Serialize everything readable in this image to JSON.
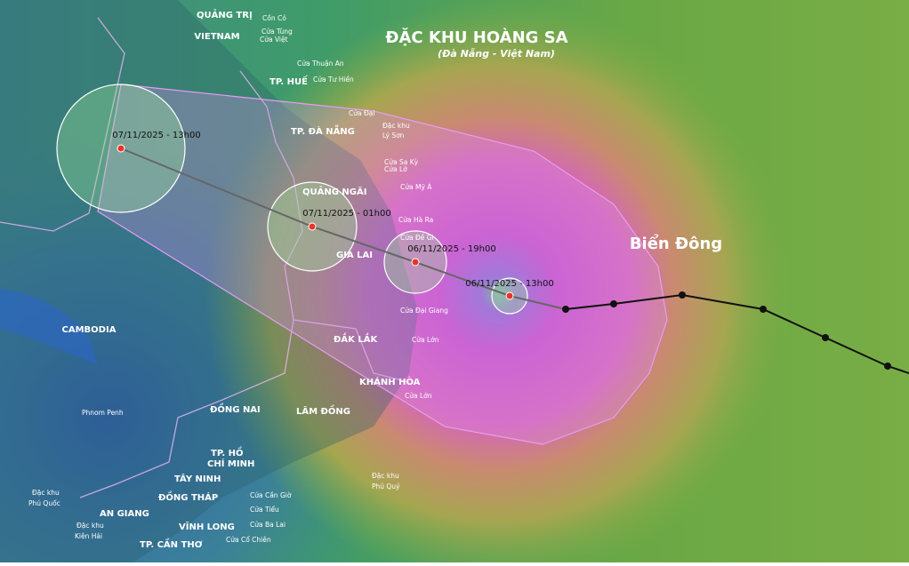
{
  "header": {
    "title": "ĐẶC KHU HOÀNG SA",
    "subtitle": "(Đà Nẵng - Việt Nam)"
  },
  "sea_label": "Biển Đông",
  "countries": [
    "VIETNAM",
    "CAMBODIA"
  ],
  "regions": [
    "QUẢNG TRỊ",
    "TP. HUẾ",
    "TP. ĐÀ NẴNG",
    "QUẢNG NGÃI",
    "GIA LAI",
    "ĐẮK LẮK",
    "KHÁNH HÒA",
    "LÂM ĐỒNG",
    "ĐỒNG NAI",
    "TP. HỒ",
    "CHÍ MINH",
    "TÂY NINH",
    "ĐỒNG THÁP",
    "AN GIANG",
    "VĨNH LONG",
    "TP. CẦN THƠ"
  ],
  "places": [
    "Cồn Cỏ",
    "Cửa Tùng",
    "Cửa Việt",
    "Cửa Thuận An",
    "Cửa Tư Hiền",
    "Cửa Đại",
    "Đặc khu",
    "Lý Sơn",
    "Cửa Sa Kỳ",
    "Cửa Lở",
    "Cửa Mỹ Á",
    "Cửa Hà Ra",
    "Cửa Đề Gi",
    "Cửa Đại Giang",
    "Cửa Lớn",
    "Cửa Lớn",
    "Phnom Penh",
    "Cửa Cần Giờ",
    "Cửa Tiểu",
    "Cửa Ba Lai",
    "Cửa Cổ Chiên",
    "Đặc khu",
    "Phú Quý",
    "Đặc khu",
    "Phú Quốc",
    "Đặc khu",
    "Kiên Hải"
  ],
  "forecast": [
    "06/11/2025 - 13h00",
    "06/11/2025 - 19h00",
    "07/11/2025 - 01h00",
    "07/11/2025 - 13h00"
  ]
}
